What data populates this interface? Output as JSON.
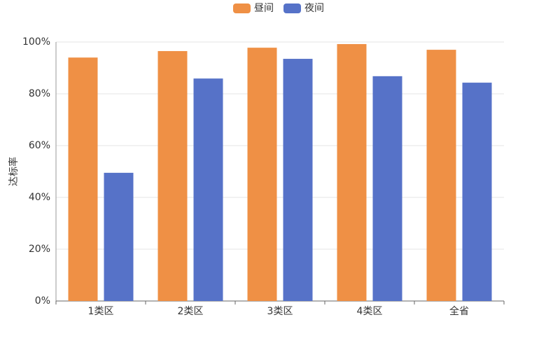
{
  "chart_data": {
    "type": "bar",
    "y_label": "达标率",
    "categories": [
      "1类区",
      "2类区",
      "3类区",
      "4类区",
      "全省"
    ],
    "series": [
      {
        "name": "昼间",
        "color": "#ef9045",
        "values": [
          94.0,
          96.5,
          97.8,
          99.2,
          97.0
        ]
      },
      {
        "name": "夜间",
        "color": "#5672c8",
        "values": [
          49.5,
          85.9,
          93.5,
          86.8,
          84.3
        ]
      }
    ],
    "ylim": [
      0,
      100
    ],
    "yticks": [
      {
        "value": 0,
        "label": "0%"
      },
      {
        "value": 20,
        "label": "20%"
      },
      {
        "value": 40,
        "label": "40%"
      },
      {
        "value": 60,
        "label": "60%"
      },
      {
        "value": 80,
        "label": "80%"
      },
      {
        "value": 100,
        "label": "100%"
      }
    ],
    "grid": true
  }
}
